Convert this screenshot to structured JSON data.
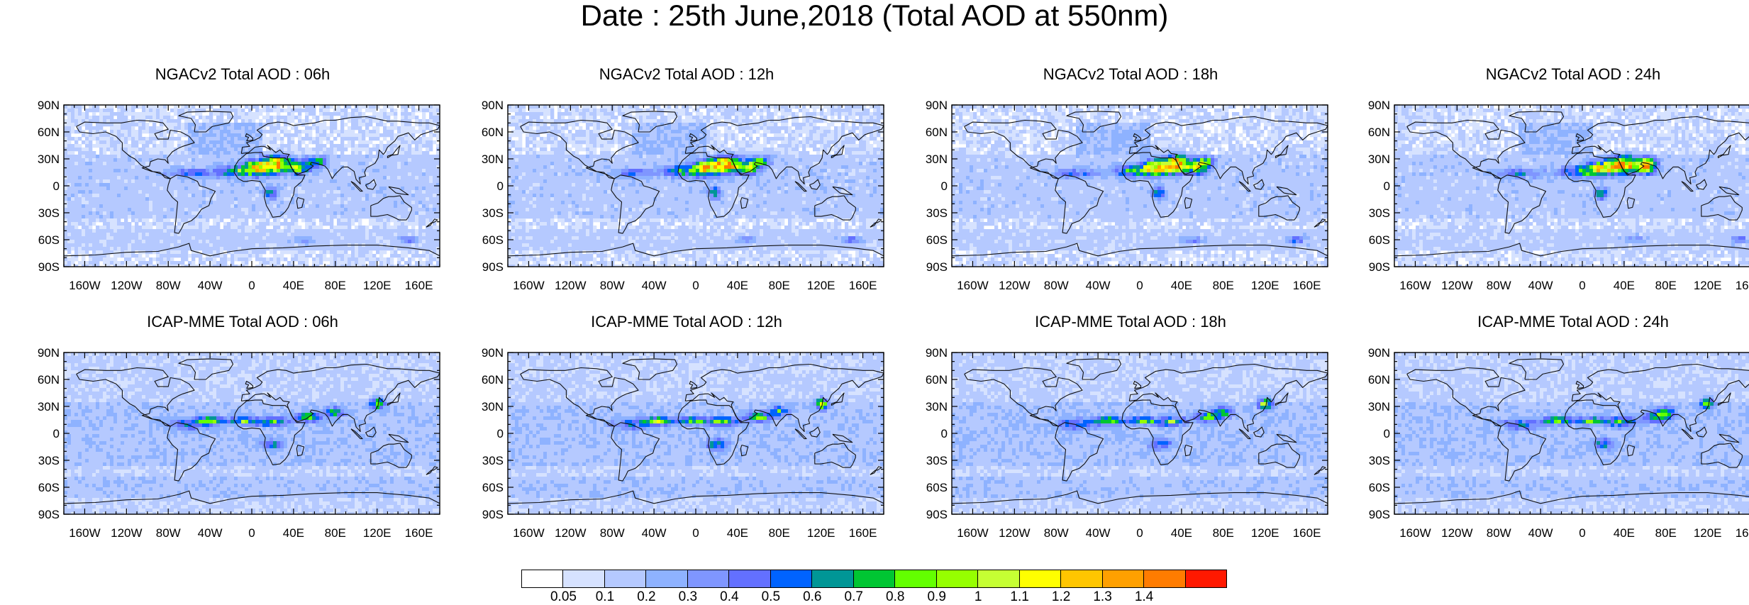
{
  "title": "Date : 25th June,2018 (Total AOD at 550nm)",
  "lon_ticks": [
    "160W",
    "120W",
    "80W",
    "40W",
    "0",
    "40E",
    "80E",
    "120E",
    "160E"
  ],
  "lat_ticks": [
    "90N",
    "60N",
    "30N",
    "0",
    "30S",
    "60S",
    "90S"
  ],
  "panels": [
    {
      "title": "NGACv2 Total AOD : 06h",
      "hour": 6,
      "model": "NGACv2"
    },
    {
      "title": "NGACv2 Total AOD : 12h",
      "hour": 12,
      "model": "NGACv2"
    },
    {
      "title": "NGACv2 Total AOD : 18h",
      "hour": 18,
      "model": "NGACv2"
    },
    {
      "title": "NGACv2 Total AOD : 24h",
      "hour": 24,
      "model": "NGACv2"
    },
    {
      "title": "ICAP-MME Total AOD : 06h",
      "hour": 6,
      "model": "ICAP-MME"
    },
    {
      "title": "ICAP-MME Total AOD : 12h",
      "hour": 12,
      "model": "ICAP-MME"
    },
    {
      "title": "ICAP-MME Total AOD : 18h",
      "hour": 18,
      "model": "ICAP-MME"
    },
    {
      "title": "ICAP-MME Total AOD : 24h",
      "hour": 24,
      "model": "ICAP-MME"
    }
  ],
  "colorbar": {
    "labels": [
      "0.05",
      "0.1",
      "0.2",
      "0.3",
      "0.4",
      "0.5",
      "0.6",
      "0.7",
      "0.8",
      "0.9",
      "1",
      "1.1",
      "1.2",
      "1.3",
      "1.4"
    ],
    "colors": [
      "#ffffff",
      "#d6e2ff",
      "#b5c9ff",
      "#8eb2ff",
      "#7f96ff",
      "#6370ff",
      "#0063ff",
      "#009696",
      "#00c633",
      "#63ff00",
      "#96ff00",
      "#c6ff33",
      "#ffff00",
      "#ffc600",
      "#ffa000",
      "#ff7c00",
      "#ff1900"
    ]
  }
}
